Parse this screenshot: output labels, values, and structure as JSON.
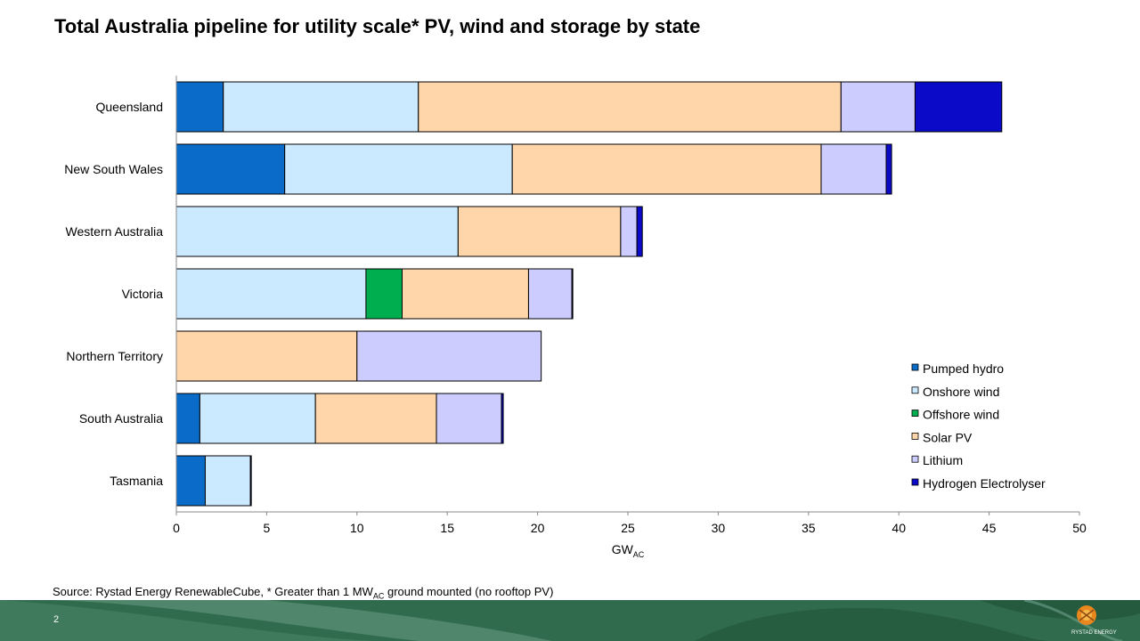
{
  "title": "Total Australia pipeline for utility scale* PV, wind and storage by state",
  "source": {
    "prefix": "Source: Rystad Energy RenewableCube, * Greater than 1 MW",
    "sub": "AC",
    "suffix": " ground mounted (no rooftop PV)"
  },
  "page_number": "2",
  "logo_text": "RYSTAD ENERGY",
  "chart_data": {
    "type": "bar",
    "orientation": "horizontal",
    "stacked": true,
    "categories": [
      "Queensland",
      "New South Wales",
      "Western Australia",
      "Victoria",
      "Northern Territory",
      "South Australia",
      "Tasmania"
    ],
    "series": [
      {
        "name": "Pumped hydro",
        "color": "#0b6bc8",
        "values": [
          2.6,
          6.0,
          0,
          0,
          0,
          1.3,
          1.6
        ]
      },
      {
        "name": "Onshore wind",
        "color": "#cceaff",
        "values": [
          10.8,
          12.6,
          15.6,
          10.5,
          0,
          6.4,
          2.5
        ]
      },
      {
        "name": "Offshore wind",
        "color": "#00ad4f",
        "values": [
          0,
          0,
          0,
          2.0,
          0,
          0,
          0
        ]
      },
      {
        "name": "Solar PV",
        "color": "#fed6aa",
        "values": [
          23.4,
          17.1,
          9.0,
          7.0,
          10.0,
          6.7,
          0
        ]
      },
      {
        "name": "Lithium",
        "color": "#ccccfe",
        "values": [
          4.1,
          3.6,
          0.9,
          2.4,
          10.2,
          3.6,
          0
        ]
      },
      {
        "name": "Hydrogen Electrolyser",
        "color": "#0a0ac8",
        "values": [
          4.8,
          0.3,
          0.3,
          0.05,
          0,
          0.1,
          0.05
        ]
      }
    ],
    "xlabel": "GW",
    "xlabel_sub": "AC",
    "xlim": [
      0,
      50
    ],
    "xticks": [
      "0",
      "5",
      "10",
      "15",
      "20",
      "25",
      "30",
      "35",
      "40",
      "45",
      "50"
    ],
    "grid": false,
    "legend": "bottom-right"
  }
}
